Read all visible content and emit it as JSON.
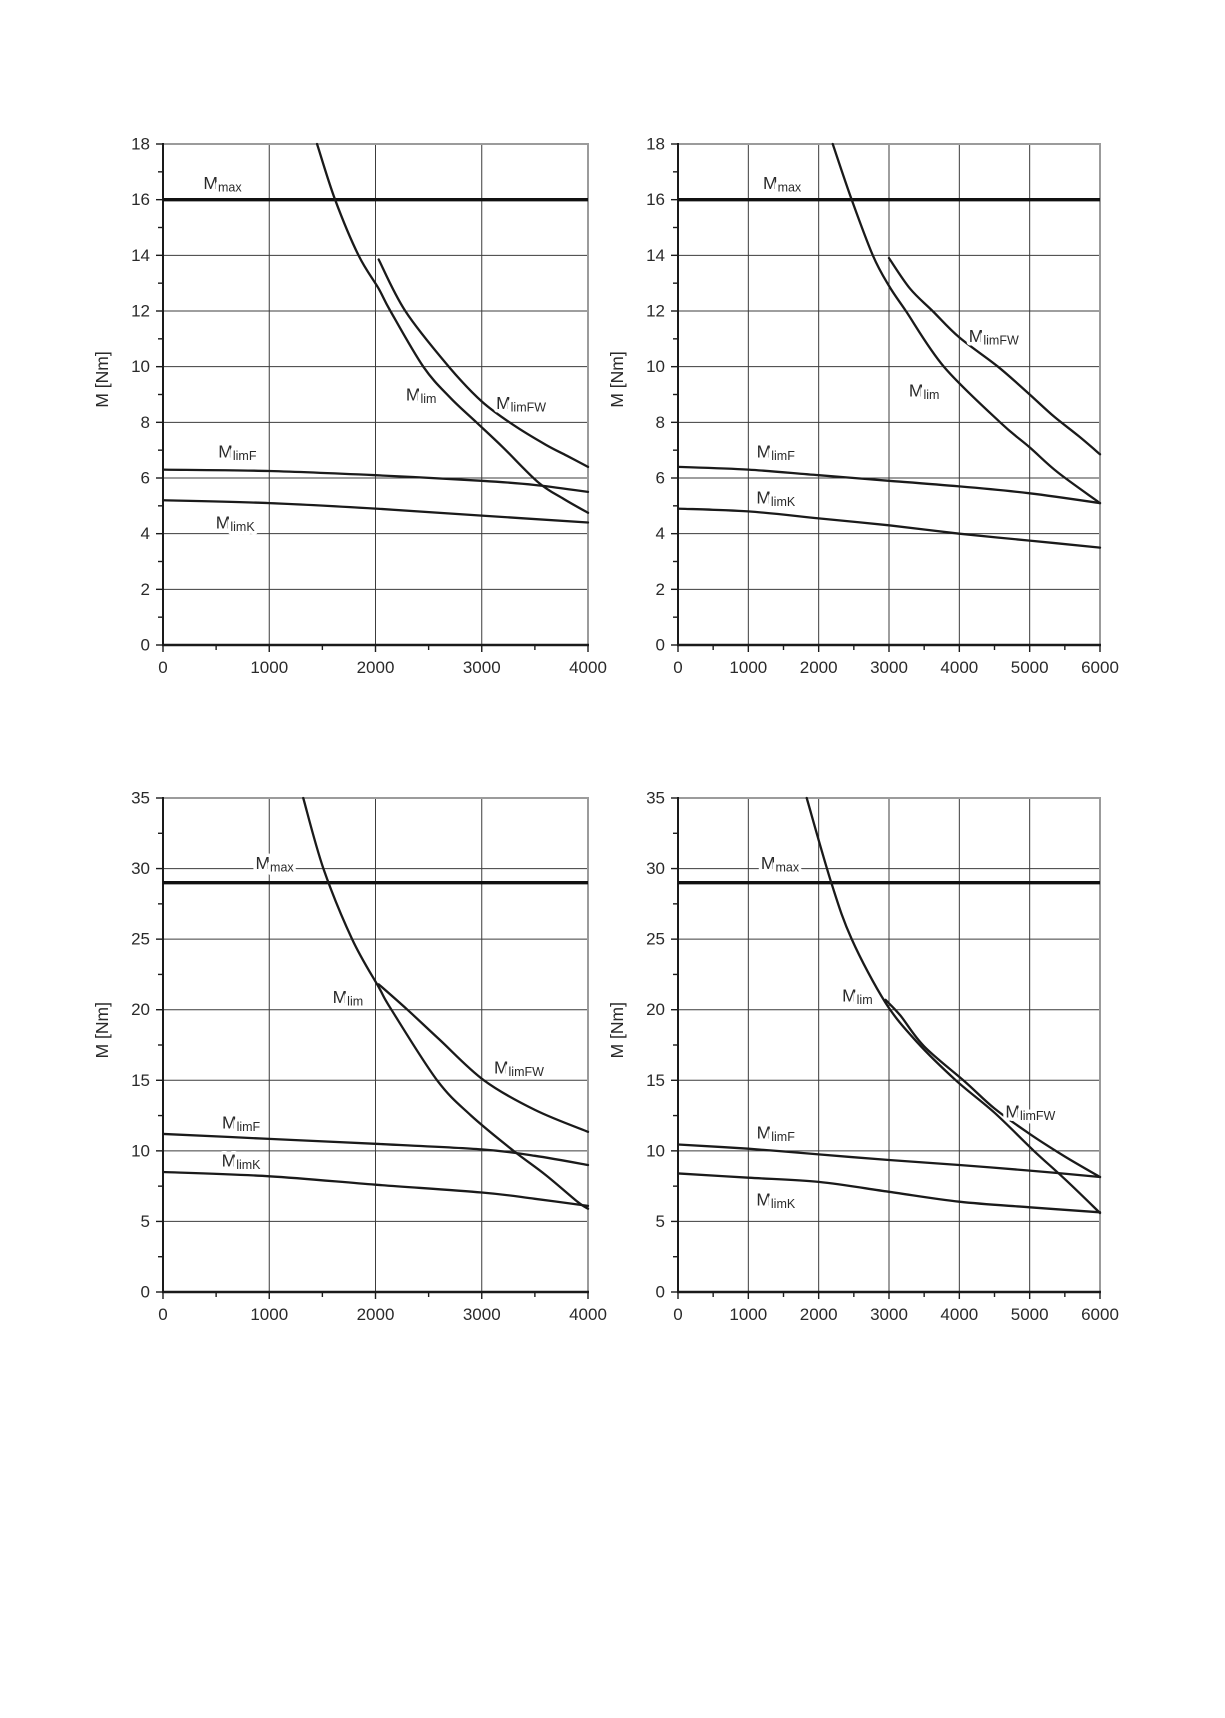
{
  "page": {
    "background": "#ffffff"
  },
  "colors": {
    "curve": "#1a1a1a",
    "grid": "#3c3c3c",
    "axis": "#1a1a1a",
    "frame_light": "#9b9b9b",
    "text": "#2a2a2a",
    "mmax_line": "#111111"
  },
  "chart_data": [
    {
      "id": "top-left",
      "type": "line",
      "title": "",
      "xlabel": "",
      "ylabel": "M [Nm]",
      "xlim": [
        0,
        4000
      ],
      "ylim": [
        0,
        18
      ],
      "x_ticks": [
        0,
        1000,
        2000,
        3000,
        4000
      ],
      "y_ticks": [
        0,
        2,
        4,
        6,
        8,
        10,
        12,
        14,
        16,
        18
      ],
      "x_minor_step": 500,
      "y_minor_step": 1,
      "grid": true,
      "legend_position": "none",
      "series": [
        {
          "name": "Mmax",
          "label": {
            "main": "M",
            "sub": "max"
          },
          "kind": "hline",
          "y": 16,
          "label_at": [
            560,
            16.6
          ]
        },
        {
          "name": "Mlim",
          "label": {
            "main": "M",
            "sub": "lim"
          },
          "kind": "curve",
          "label_at": [
            2430,
            9.0
          ],
          "points": [
            [
              1450,
              18
            ],
            [
              1620,
              16
            ],
            [
              1840,
              14
            ],
            [
              2030,
              12.8
            ],
            [
              2140,
              12
            ],
            [
              2450,
              10
            ],
            [
              2700,
              8.9
            ],
            [
              2950,
              8.0
            ],
            [
              3200,
              7.1
            ],
            [
              3530,
              5.85
            ],
            [
              3770,
              5.25
            ],
            [
              4000,
              4.75
            ]
          ]
        },
        {
          "name": "MlimFW",
          "label": {
            "main": "M",
            "sub": "limFW"
          },
          "kind": "curve",
          "label_at": [
            3370,
            8.7
          ],
          "points": [
            [
              2030,
              13.85
            ],
            [
              2280,
              12.0
            ],
            [
              2690,
              10.0
            ],
            [
              3000,
              8.75
            ],
            [
              3300,
              7.9
            ],
            [
              3600,
              7.2
            ],
            [
              3800,
              6.8
            ],
            [
              4000,
              6.4
            ]
          ]
        },
        {
          "name": "MlimF",
          "label": {
            "main": "M",
            "sub": "limF"
          },
          "kind": "curve",
          "label_at": [
            700,
            6.95
          ],
          "points": [
            [
              0,
              6.3
            ],
            [
              1000,
              6.25
            ],
            [
              2000,
              6.1
            ],
            [
              3000,
              5.9
            ],
            [
              3500,
              5.75
            ],
            [
              4000,
              5.5
            ]
          ]
        },
        {
          "name": "MlimK",
          "label": {
            "main": "M",
            "sub": "limK"
          },
          "kind": "curve",
          "label_at": [
            680,
            4.4
          ],
          "points": [
            [
              0,
              5.2
            ],
            [
              1000,
              5.1
            ],
            [
              2000,
              4.9
            ],
            [
              3000,
              4.65
            ],
            [
              4000,
              4.4
            ]
          ]
        }
      ]
    },
    {
      "id": "top-right",
      "type": "line",
      "title": "",
      "xlabel": "",
      "ylabel": "M [Nm]",
      "xlim": [
        0,
        6000
      ],
      "ylim": [
        0,
        18
      ],
      "x_ticks": [
        0,
        1000,
        2000,
        3000,
        4000,
        5000,
        6000
      ],
      "y_ticks": [
        0,
        2,
        4,
        6,
        8,
        10,
        12,
        14,
        16,
        18
      ],
      "x_minor_step": 500,
      "y_minor_step": 1,
      "grid": true,
      "legend_position": "none",
      "series": [
        {
          "name": "Mmax",
          "label": {
            "main": "M",
            "sub": "max"
          },
          "kind": "hline",
          "y": 16,
          "label_at": [
            1480,
            16.6
          ]
        },
        {
          "name": "Mlim",
          "label": {
            "main": "M",
            "sub": "lim"
          },
          "kind": "curve",
          "label_at": [
            3500,
            9.15
          ],
          "points": [
            [
              2200,
              18
            ],
            [
              2470,
              16
            ],
            [
              2770,
              14
            ],
            [
              3000,
              12.9
            ],
            [
              3240,
              12
            ],
            [
              3780,
              10
            ],
            [
              4580,
              8
            ],
            [
              5000,
              7.1
            ],
            [
              5400,
              6.2
            ],
            [
              6000,
              5.1
            ]
          ]
        },
        {
          "name": "MlimFW",
          "label": {
            "main": "M",
            "sub": "limFW"
          },
          "kind": "curve",
          "label_at": [
            4490,
            11.1
          ],
          "points": [
            [
              3000,
              13.9
            ],
            [
              3300,
              12.8
            ],
            [
              3620,
              12
            ],
            [
              4000,
              11.05
            ],
            [
              4550,
              10
            ],
            [
              5000,
              9.0
            ],
            [
              5350,
              8.2
            ],
            [
              5700,
              7.5
            ],
            [
              6000,
              6.85
            ]
          ]
        },
        {
          "name": "MlimF",
          "label": {
            "main": "M",
            "sub": "limF"
          },
          "kind": "curve",
          "label_at": [
            1390,
            6.95
          ],
          "points": [
            [
              0,
              6.4
            ],
            [
              1000,
              6.3
            ],
            [
              2000,
              6.1
            ],
            [
              3000,
              5.9
            ],
            [
              4000,
              5.7
            ],
            [
              5000,
              5.45
            ],
            [
              6000,
              5.1
            ]
          ]
        },
        {
          "name": "MlimK",
          "label": {
            "main": "M",
            "sub": "limK"
          },
          "kind": "curve",
          "label_at": [
            1390,
            5.3
          ],
          "points": [
            [
              0,
              4.9
            ],
            [
              1000,
              4.8
            ],
            [
              2000,
              4.55
            ],
            [
              3000,
              4.3
            ],
            [
              4000,
              4.0
            ],
            [
              5000,
              3.75
            ],
            [
              6000,
              3.5
            ]
          ]
        }
      ]
    },
    {
      "id": "bottom-left",
      "type": "line",
      "title": "",
      "xlabel": "",
      "ylabel": "M [Nm]",
      "xlim": [
        0,
        4000
      ],
      "ylim": [
        0,
        35
      ],
      "x_ticks": [
        0,
        1000,
        2000,
        3000,
        4000
      ],
      "y_ticks": [
        0,
        5,
        10,
        15,
        20,
        25,
        30,
        35
      ],
      "x_minor_step": 500,
      "y_minor_step": 2.5,
      "grid": true,
      "legend_position": "none",
      "series": [
        {
          "name": "Mmax",
          "label": {
            "main": "M",
            "sub": "max"
          },
          "kind": "hline",
          "y": 29,
          "label_at": [
            1050,
            30.4
          ]
        },
        {
          "name": "Mlim",
          "label": {
            "main": "M",
            "sub": "lim"
          },
          "kind": "curve",
          "label_at": [
            1740,
            20.9
          ],
          "points": [
            [
              1320,
              35
            ],
            [
              1510,
              30
            ],
            [
              1780,
              25
            ],
            [
              2030,
              21.6
            ],
            [
              2150,
              20
            ],
            [
              2580,
              15
            ],
            [
              2900,
              12.5
            ],
            [
              3300,
              10
            ],
            [
              3600,
              8.3
            ],
            [
              3900,
              6.4
            ],
            [
              4000,
              5.9
            ]
          ]
        },
        {
          "name": "MlimFW",
          "label": {
            "main": "M",
            "sub": "limFW"
          },
          "kind": "curve",
          "label_at": [
            3350,
            15.9
          ],
          "points": [
            [
              2030,
              21.8
            ],
            [
              2300,
              20
            ],
            [
              2600,
              17.9
            ],
            [
              3020,
              15
            ],
            [
              3500,
              12.9
            ],
            [
              4000,
              11.35
            ]
          ]
        },
        {
          "name": "MlimF",
          "label": {
            "main": "M",
            "sub": "limF"
          },
          "kind": "curve",
          "label_at": [
            735,
            12.0
          ],
          "points": [
            [
              0,
              11.2
            ],
            [
              1000,
              10.85
            ],
            [
              2000,
              10.5
            ],
            [
              3000,
              10.1
            ],
            [
              3500,
              9.65
            ],
            [
              4000,
              9.0
            ]
          ]
        },
        {
          "name": "MlimK",
          "label": {
            "main": "M",
            "sub": "limK"
          },
          "kind": "curve",
          "label_at": [
            735,
            9.3
          ],
          "points": [
            [
              0,
              8.5
            ],
            [
              1000,
              8.2
            ],
            [
              2000,
              7.6
            ],
            [
              3000,
              7.05
            ],
            [
              3500,
              6.6
            ],
            [
              4000,
              6.1
            ]
          ]
        }
      ]
    },
    {
      "id": "bottom-right",
      "type": "line",
      "title": "",
      "xlabel": "",
      "ylabel": "M [Nm]",
      "xlim": [
        0,
        6000
      ],
      "ylim": [
        0,
        35
      ],
      "x_ticks": [
        0,
        1000,
        2000,
        3000,
        4000,
        5000,
        6000
      ],
      "y_ticks": [
        0,
        5,
        10,
        15,
        20,
        25,
        30,
        35
      ],
      "x_minor_step": 500,
      "y_minor_step": 2.5,
      "grid": true,
      "legend_position": "none",
      "series": [
        {
          "name": "Mmax",
          "label": {
            "main": "M",
            "sub": "max"
          },
          "kind": "hline",
          "y": 29,
          "label_at": [
            1450,
            30.4
          ]
        },
        {
          "name": "Mlim",
          "label": {
            "main": "M",
            "sub": "lim"
          },
          "kind": "curve",
          "label_at": [
            2550,
            21.0
          ],
          "points": [
            [
              1830,
              35
            ],
            [
              2180,
              29
            ],
            [
              2470,
              25
            ],
            [
              2950,
              20.5
            ],
            [
              3400,
              17.7
            ],
            [
              3950,
              15
            ],
            [
              4500,
              12.7
            ],
            [
              5060,
              10
            ],
            [
              5500,
              8.0
            ],
            [
              6000,
              5.6
            ]
          ]
        },
        {
          "name": "MlimFW",
          "label": {
            "main": "M",
            "sub": "limFW"
          },
          "kind": "curve",
          "label_at": [
            5010,
            12.8
          ],
          "points": [
            [
              2950,
              20.7
            ],
            [
              3160,
              19.6
            ],
            [
              3500,
              17.4
            ],
            [
              4080,
              14.9
            ],
            [
              4500,
              13.0
            ],
            [
              5000,
              11.2
            ],
            [
              5500,
              9.6
            ],
            [
              6000,
              8.15
            ]
          ]
        },
        {
          "name": "MlimF",
          "label": {
            "main": "M",
            "sub": "limF"
          },
          "kind": "curve",
          "label_at": [
            1390,
            11.3
          ],
          "points": [
            [
              0,
              10.45
            ],
            [
              1000,
              10.15
            ],
            [
              2000,
              9.75
            ],
            [
              3000,
              9.35
            ],
            [
              4000,
              9.0
            ],
            [
              5000,
              8.6
            ],
            [
              6000,
              8.15
            ]
          ]
        },
        {
          "name": "MlimK",
          "label": {
            "main": "M",
            "sub": "limK"
          },
          "kind": "curve",
          "label_at": [
            1390,
            6.55
          ],
          "points": [
            [
              0,
              8.4
            ],
            [
              1000,
              8.1
            ],
            [
              2000,
              7.8
            ],
            [
              3000,
              7.1
            ],
            [
              4000,
              6.4
            ],
            [
              5000,
              6.0
            ],
            [
              6000,
              5.65
            ]
          ]
        }
      ]
    }
  ]
}
